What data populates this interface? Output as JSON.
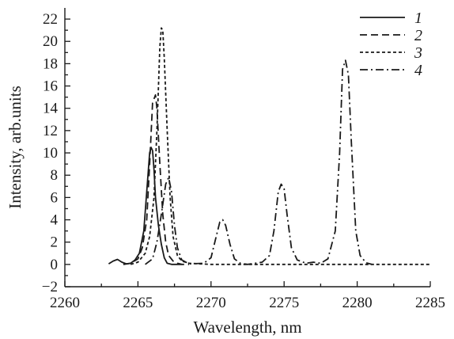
{
  "chart_data": {
    "type": "line",
    "xlabel": "Wavelength, nm",
    "ylabel": "Intensity, arb.units",
    "xlim": [
      2260,
      2285
    ],
    "ylim": [
      -2,
      23
    ],
    "xticks": [
      2260,
      2265,
      2270,
      2275,
      2280,
      2285
    ],
    "yticks": [
      -2,
      0,
      2,
      4,
      6,
      8,
      10,
      12,
      14,
      16,
      18,
      20,
      22
    ],
    "grid": false,
    "legend_position": "top-right",
    "series": [
      {
        "name": "1",
        "dash": "solid",
        "x": [
          2263.0,
          2263.3,
          2263.6,
          2263.9,
          2264.2,
          2264.5,
          2264.8,
          2265.1,
          2265.4,
          2265.6,
          2265.8,
          2265.9,
          2266.0,
          2266.1,
          2266.2,
          2266.4,
          2266.6,
          2266.8,
          2267.0,
          2267.3,
          2267.6,
          2268.0
        ],
        "y": [
          0.05,
          0.3,
          0.45,
          0.2,
          0.05,
          0.1,
          0.4,
          1.0,
          3.0,
          6.5,
          10.0,
          10.5,
          10.2,
          8.5,
          6.0,
          3.5,
          1.8,
          0.6,
          0.1,
          0.0,
          0.0,
          0.0
        ]
      },
      {
        "name": "2",
        "dash": "dashed",
        "x": [
          2264.0,
          2264.5,
          2265.0,
          2265.3,
          2265.6,
          2265.8,
          2266.0,
          2266.2,
          2266.3,
          2266.5,
          2266.7,
          2266.9,
          2267.1,
          2267.4,
          2267.7,
          2268.0,
          2268.5
        ],
        "y": [
          0.0,
          0.1,
          0.5,
          1.5,
          4.0,
          9.0,
          14.5,
          15.2,
          14.0,
          9.0,
          4.5,
          2.0,
          0.8,
          0.3,
          0.1,
          0.0,
          0.0
        ]
      },
      {
        "name": "3",
        "dash": "dotted",
        "x": [
          2264.5,
          2265.0,
          2265.5,
          2265.8,
          2266.1,
          2266.3,
          2266.5,
          2266.6,
          2266.7,
          2266.8,
          2267.0,
          2267.2,
          2267.4,
          2267.7,
          2268.0,
          2268.5,
          2270.0,
          2275.0,
          2280.0,
          2285.0
        ],
        "y": [
          0.0,
          0.2,
          1.0,
          2.5,
          6.0,
          12.0,
          19.5,
          21.2,
          21.0,
          18.5,
          12.0,
          6.0,
          2.5,
          0.8,
          0.3,
          0.1,
          0.0,
          0.0,
          0.0,
          0.0
        ]
      },
      {
        "name": "4",
        "dash": "dash-dot",
        "x": [
          2265.5,
          2266.0,
          2266.3,
          2266.6,
          2266.9,
          2267.1,
          2267.3,
          2267.5,
          2267.7,
          2268.0,
          2268.5,
          2269.5,
          2270.0,
          2270.3,
          2270.6,
          2270.8,
          2271.0,
          2271.3,
          2271.6,
          2272.0,
          2272.5,
          2273.5,
          2274.0,
          2274.3,
          2274.6,
          2274.8,
          2275.0,
          2275.2,
          2275.5,
          2275.9,
          2276.5,
          2277.0,
          2277.5,
          2278.0,
          2278.5,
          2278.8,
          2279.0,
          2279.2,
          2279.4,
          2279.6,
          2279.9,
          2280.2,
          2280.6,
          2281.0
        ],
        "y": [
          0.0,
          0.5,
          2.0,
          4.5,
          7.2,
          7.8,
          6.5,
          3.5,
          1.5,
          0.4,
          0.05,
          0.1,
          0.6,
          2.2,
          3.8,
          4.0,
          3.5,
          1.8,
          0.5,
          0.1,
          0.0,
          0.2,
          0.8,
          3.0,
          6.5,
          7.2,
          6.8,
          4.5,
          1.5,
          0.4,
          0.1,
          0.2,
          0.1,
          0.5,
          3.0,
          10.0,
          17.5,
          18.3,
          17.0,
          11.0,
          3.0,
          0.8,
          0.15,
          0.0
        ]
      }
    ]
  }
}
